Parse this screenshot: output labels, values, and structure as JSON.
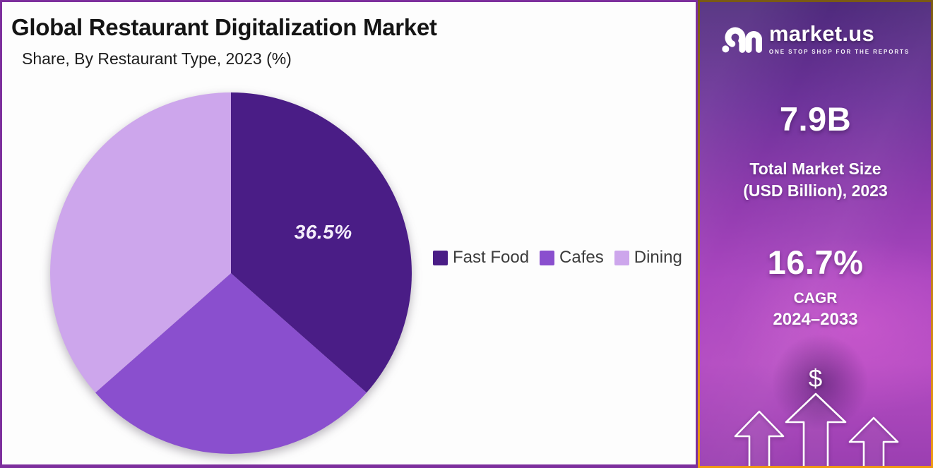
{
  "header": {
    "title": "Global Restaurant Digitalization Market",
    "subtitle": "Share, By Restaurant Type, 2023 (%)"
  },
  "chart_data": {
    "type": "pie",
    "title": "Global Restaurant Digitalization Market",
    "subtitle": "Share, By Restaurant Type, 2023 (%)",
    "unit": "%",
    "year": "2023",
    "categories": [
      "Fast Food",
      "Cafes",
      "Dining"
    ],
    "values": [
      36.5,
      27,
      36.5
    ],
    "colors": [
      "#4a1d86",
      "#8a4fce",
      "#cda6ec"
    ],
    "start_angle_deg": 0,
    "direction": "clockwise",
    "legend_position": "right",
    "slice_labels": [
      {
        "slice_index": 0,
        "text": "36.5%",
        "radius_frac": 0.56
      }
    ]
  },
  "sidebar": {
    "brand": {
      "name": "market.us",
      "tagline": "ONE STOP SHOP FOR THE REPORTS"
    },
    "stats": [
      {
        "value": "7.9B",
        "caption_lines": [
          "Total Market Size",
          "(USD Billion), 2023"
        ]
      },
      {
        "value": "16.7%",
        "caption_lines": [
          "CAGR",
          "2024–2033"
        ]
      }
    ],
    "dollar_symbol": "$",
    "icons": {
      "logo": "market-us-logo-icon",
      "dollar": "dollar-icon",
      "arrows": "growth-arrows-icon"
    }
  },
  "colors": {
    "frame_border": "#7d2f9d",
    "sidebar_border_gold": "#ef9815",
    "panel_bg": "#fdfdfd",
    "slice_label_text": "#f4eefb",
    "legend_text": "#3c3c3c"
  }
}
